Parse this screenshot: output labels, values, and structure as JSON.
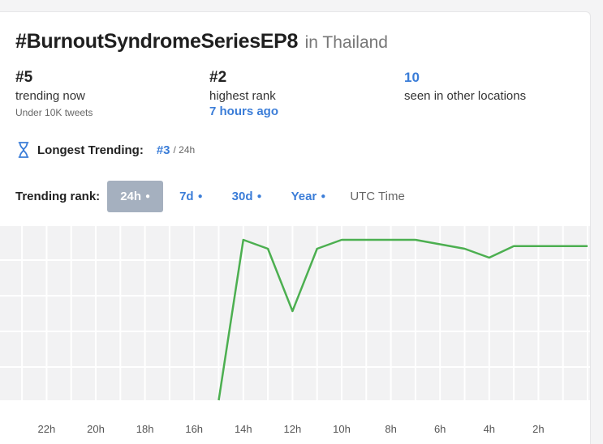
{
  "header": {
    "hashtag": "#BurnoutSyndromeSeriesEP8",
    "location": "in Thailand"
  },
  "stats": {
    "current": {
      "value": "#5",
      "label": "trending now",
      "sub": "Under 10K tweets"
    },
    "highest": {
      "value": "#2",
      "label": "highest rank",
      "sub": "7 hours ago"
    },
    "other_locations": {
      "value": "10",
      "label": "seen in other locations"
    }
  },
  "longest_trending": {
    "label": "Longest Trending:",
    "rank": "#3",
    "window": "/ 24h",
    "icon": "hourglass-icon"
  },
  "trending_rank": {
    "label": "Trending rank:",
    "ranges": [
      {
        "label": "24h",
        "active": true
      },
      {
        "label": "7d",
        "active": false
      },
      {
        "label": "30d",
        "active": false
      },
      {
        "label": "Year",
        "active": false
      }
    ],
    "timezone": "UTC Time"
  },
  "colors": {
    "accent": "#3b7dd8",
    "line": "#4caf50",
    "active_button": "#a5b0bf"
  },
  "chart_data": {
    "type": "line",
    "tick_labels": [
      "22h",
      "20h",
      "18h",
      "16h",
      "14h",
      "12h",
      "10h",
      "8h",
      "6h",
      "4h",
      "2h"
    ],
    "x_hours_ago": [
      15,
      14,
      13,
      12,
      11,
      10,
      9,
      8,
      7,
      6,
      5,
      4,
      3,
      2,
      1,
      0
    ],
    "rank": [
      50,
      2,
      3,
      10,
      3,
      2,
      2,
      2,
      2,
      2.5,
      3,
      4,
      2.7,
      2.7,
      2.7,
      2.7
    ],
    "y_inverted": true,
    "grid": true
  }
}
